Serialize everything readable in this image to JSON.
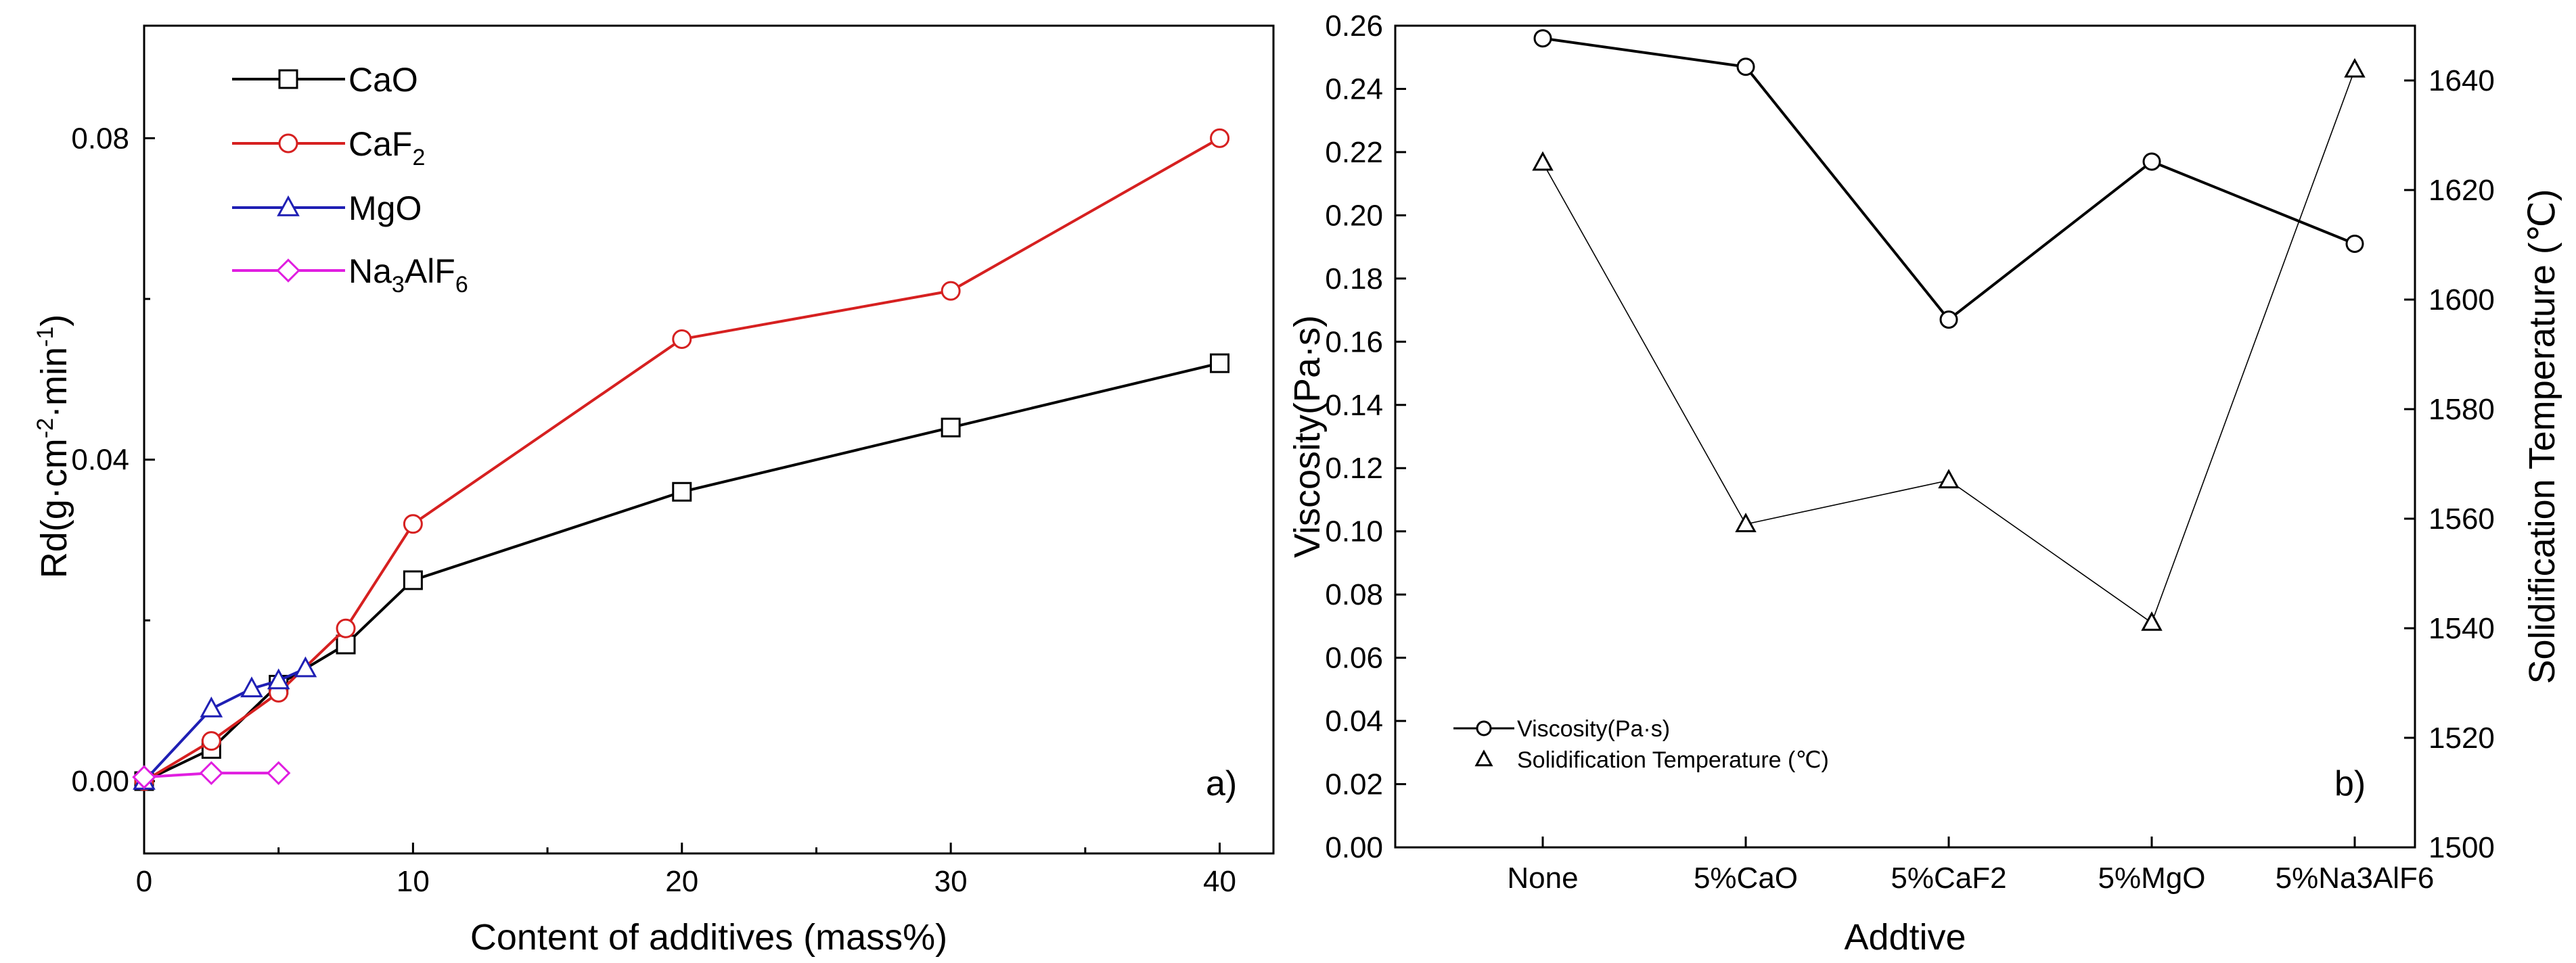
{
  "chart_data": [
    {
      "type": "line",
      "panel_label": "a)",
      "xlabel": "Content of additives (mass%)",
      "ylabel": {
        "base": "Rd(g·cm",
        "exp1": "-2",
        "mid": "·min",
        "exp2": "-1",
        "end": ")"
      },
      "xlim": [
        0,
        42
      ],
      "ylim": [
        -0.009,
        0.094
      ],
      "xticks": [
        "0",
        "10",
        "20",
        "30",
        "40"
      ],
      "yticks": [
        "0.00",
        "0.04",
        "0.08"
      ],
      "legend_position": "top-left",
      "series": [
        {
          "name": "CaO",
          "label": {
            "base": "CaO"
          },
          "color": "#000000",
          "marker": "square",
          "x": [
            0,
            2.5,
            5,
            7.5,
            10,
            20,
            30,
            40
          ],
          "y": [
            0.0,
            0.004,
            0.012,
            0.017,
            0.025,
            0.036,
            0.044,
            0.052
          ]
        },
        {
          "name": "CaF2",
          "label": {
            "base": "CaF",
            "sub": "2"
          },
          "color": "#d62020",
          "marker": "circle",
          "x": [
            0,
            2.5,
            5,
            7.5,
            10,
            20,
            30,
            40
          ],
          "y": [
            0.0,
            0.005,
            0.011,
            0.019,
            0.032,
            0.055,
            0.061,
            0.08
          ]
        },
        {
          "name": "MgO",
          "label": {
            "base": "MgO"
          },
          "color": "#1f1fb4",
          "marker": "triangle",
          "x": [
            0,
            2.5,
            4,
            5,
            6
          ],
          "y": [
            0.0,
            0.009,
            0.0115,
            0.0125,
            0.014
          ]
        },
        {
          "name": "Na3AlF6",
          "label": {
            "base": "Na",
            "sub": "3",
            "rest": "AlF",
            "sub2": "6"
          },
          "color": "#e01ee0",
          "marker": "diamond",
          "x": [
            0,
            2.5,
            5
          ],
          "y": [
            0.0005,
            0.001,
            0.001
          ]
        }
      ]
    },
    {
      "type": "line",
      "panel_label": "b)",
      "xlabel": "Addtive",
      "ylabel": "Viscosity(Pa·s)",
      "y2label": "Solidification Temperature (℃)",
      "categories": [
        "None",
        "5%CaO",
        "5%CaF2",
        "5%MgO",
        "5%Na3AlF6"
      ],
      "ylim": [
        0,
        0.26
      ],
      "y2lim": [
        1500,
        1650
      ],
      "yticks": [
        "0.00",
        "0.02",
        "0.04",
        "0.06",
        "0.08",
        "0.10",
        "0.12",
        "0.14",
        "0.16",
        "0.18",
        "0.20",
        "0.22",
        "0.24",
        "0.26"
      ],
      "y2ticks": [
        "1500",
        "1520",
        "1540",
        "1560",
        "1580",
        "1600",
        "1620",
        "1640"
      ],
      "legend_position": "bottom-left",
      "series": [
        {
          "name": "Viscosity(Pa·s)",
          "axis": "left",
          "marker": "circle",
          "line": "bold",
          "values": [
            0.256,
            0.247,
            0.167,
            0.217,
            0.191
          ]
        },
        {
          "name": "Solidification Temperature (℃)",
          "axis": "right",
          "marker": "triangle",
          "line": "thin",
          "values": [
            1625,
            1559,
            1567,
            1541,
            1642
          ]
        }
      ]
    }
  ]
}
